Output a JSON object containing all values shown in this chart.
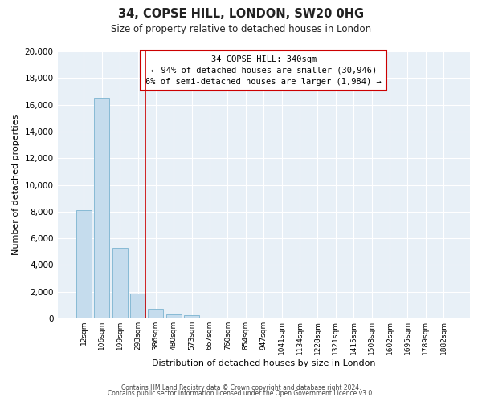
{
  "title": "34, COPSE HILL, LONDON, SW20 0HG",
  "subtitle": "Size of property relative to detached houses in London",
  "xlabel": "Distribution of detached houses by size in London",
  "ylabel": "Number of detached properties",
  "bar_labels": [
    "12sqm",
    "106sqm",
    "199sqm",
    "293sqm",
    "386sqm",
    "480sqm",
    "573sqm",
    "667sqm",
    "760sqm",
    "854sqm",
    "947sqm",
    "1041sqm",
    "1134sqm",
    "1228sqm",
    "1321sqm",
    "1415sqm",
    "1508sqm",
    "1602sqm",
    "1695sqm",
    "1789sqm",
    "1882sqm"
  ],
  "bar_values": [
    8100,
    16500,
    5300,
    1850,
    750,
    280,
    230,
    0,
    0,
    0,
    0,
    0,
    0,
    0,
    0,
    0,
    0,
    0,
    0,
    0,
    0
  ],
  "bar_color": "#c5dced",
  "bar_edge_color": "#7ab3d0",
  "vline_x": 3.42,
  "vline_color": "#cc0000",
  "annotation_title": "34 COPSE HILL: 340sqm",
  "annotation_line1": "← 94% of detached houses are smaller (30,946)",
  "annotation_line2": "6% of semi-detached houses are larger (1,984) →",
  "annotation_box_color": "#ffffff",
  "annotation_border_color": "#cc0000",
  "ylim": [
    0,
    20000
  ],
  "yticks": [
    0,
    2000,
    4000,
    6000,
    8000,
    10000,
    12000,
    14000,
    16000,
    18000,
    20000
  ],
  "footer_line1": "Contains HM Land Registry data © Crown copyright and database right 2024.",
  "footer_line2": "Contains public sector information licensed under the Open Government Licence v3.0.",
  "bg_color": "#ffffff",
  "plot_bg_color": "#e8f0f7",
  "grid_color": "#ffffff"
}
